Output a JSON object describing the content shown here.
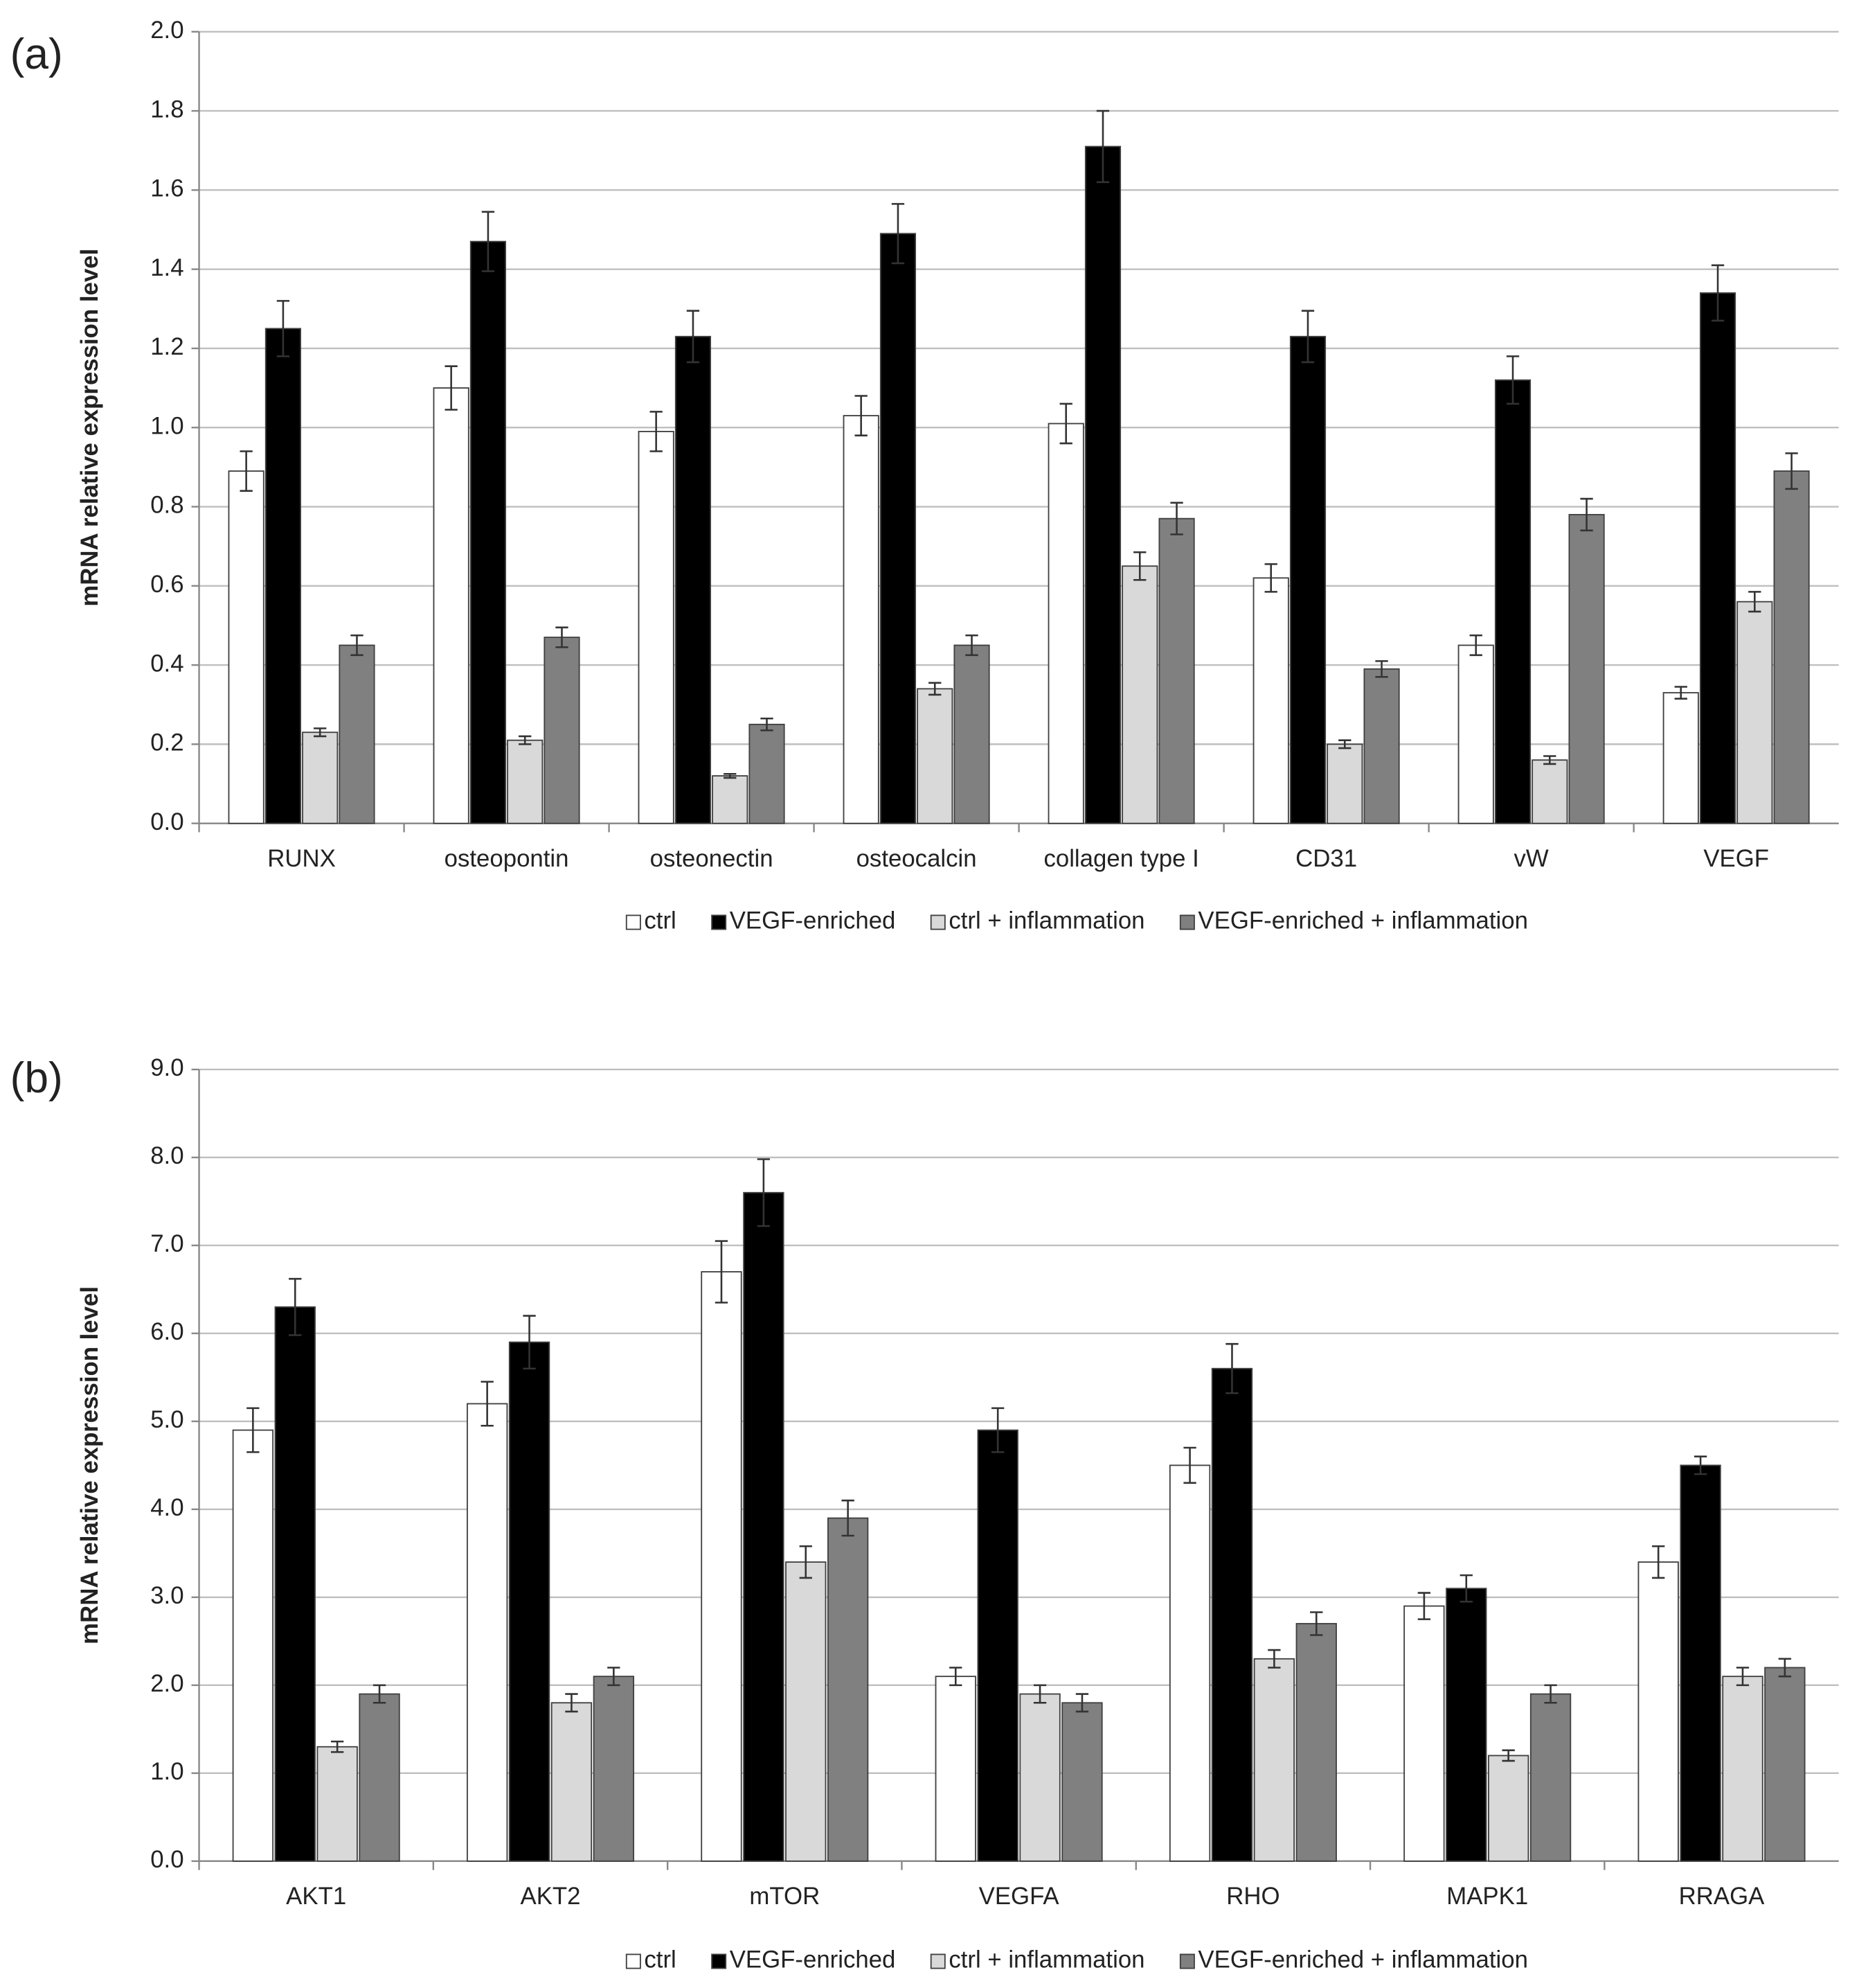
{
  "chart_data": [
    {
      "type": "bar",
      "label": "(a)",
      "y_label": "mRNA relative expression level",
      "categories": [
        "RUNX",
        "osteopontin",
        "osteonectin",
        "osteocalcin",
        "collagen type I",
        "CD31",
        "vW",
        "VEGF"
      ],
      "series": [
        {
          "name": "ctrl",
          "color": "#ffffff",
          "values": [
            0.89,
            1.1,
            0.99,
            1.03,
            1.01,
            0.62,
            0.45,
            0.33
          ],
          "errors": [
            0.05,
            0.055,
            0.05,
            0.05,
            0.05,
            0.035,
            0.025,
            0.015
          ]
        },
        {
          "name": "VEGF-enriched",
          "color": "#000000",
          "values": [
            1.25,
            1.47,
            1.23,
            1.49,
            1.71,
            1.23,
            1.12,
            1.34
          ],
          "errors": [
            0.07,
            0.075,
            0.065,
            0.075,
            0.09,
            0.065,
            0.06,
            0.07
          ]
        },
        {
          "name": "ctrl + inflammation",
          "color": "#d9d9d9",
          "values": [
            0.23,
            0.21,
            0.12,
            0.34,
            0.65,
            0.2,
            0.16,
            0.56
          ],
          "errors": [
            0.01,
            0.01,
            0.005,
            0.015,
            0.035,
            0.01,
            0.01,
            0.025
          ]
        },
        {
          "name": "VEGF-enriched + inflammation",
          "color": "#808080",
          "values": [
            0.45,
            0.47,
            0.25,
            0.45,
            0.77,
            0.39,
            0.78,
            0.89
          ],
          "errors": [
            0.025,
            0.025,
            0.015,
            0.025,
            0.04,
            0.02,
            0.04,
            0.045
          ]
        }
      ],
      "ylim": [
        0,
        2
      ],
      "yticks": [
        {
          "value": 0,
          "label": "0.0"
        },
        0.2,
        0.4,
        0.6,
        0.8,
        {
          "value": 1,
          "label": "1.0"
        },
        1.2,
        1.4,
        1.6,
        1.8,
        {
          "value": 2,
          "label": "2.0"
        }
      ],
      "grid": true,
      "legend": "bottom"
    },
    {
      "type": "bar",
      "label": "(b)",
      "y_label": "mRNA relative expression level",
      "categories": [
        "AKT1",
        "AKT2",
        "mTOR",
        "VEGFA",
        "RHO",
        "MAPK1",
        "RRAGA"
      ],
      "series": [
        {
          "name": "ctrl",
          "color": "#ffffff",
          "values": [
            4.9,
            5.2,
            6.7,
            2.1,
            4.5,
            2.9,
            3.4
          ],
          "errors": [
            0.25,
            0.25,
            0.35,
            0.1,
            0.2,
            0.15,
            0.18
          ]
        },
        {
          "name": "VEGF-enriched",
          "color": "#000000",
          "values": [
            6.3,
            5.9,
            7.6,
            4.9,
            5.6,
            3.1,
            4.5
          ],
          "errors": [
            0.32,
            0.3,
            0.38,
            0.25,
            0.28,
            0.15,
            0.1
          ]
        },
        {
          "name": "ctrl + inflammation",
          "color": "#d9d9d9",
          "values": [
            1.3,
            1.8,
            3.4,
            1.9,
            2.3,
            1.2,
            2.1
          ],
          "errors": [
            0.06,
            0.1,
            0.18,
            0.1,
            0.1,
            0.06,
            0.1
          ]
        },
        {
          "name": "VEGF-enriched + inflammation",
          "color": "#808080",
          "values": [
            1.9,
            2.1,
            3.9,
            1.8,
            2.7,
            1.9,
            2.2
          ],
          "errors": [
            0.1,
            0.1,
            0.2,
            0.1,
            0.13,
            0.1,
            0.1
          ]
        }
      ],
      "ylim": [
        0,
        9
      ],
      "yticks": [
        {
          "value": 0,
          "label": "0.0"
        },
        {
          "value": 1,
          "label": "1.0"
        },
        {
          "value": 2,
          "label": "2.0"
        },
        {
          "value": 3,
          "label": "3.0"
        },
        {
          "value": 4,
          "label": "4.0"
        },
        {
          "value": 5,
          "label": "5.0"
        },
        {
          "value": 6,
          "label": "6.0"
        },
        {
          "value": 7,
          "label": "7.0"
        },
        {
          "value": 8,
          "label": "8.0"
        },
        {
          "value": 9,
          "label": "9.0"
        }
      ],
      "grid": true,
      "legend": "bottom"
    }
  ]
}
